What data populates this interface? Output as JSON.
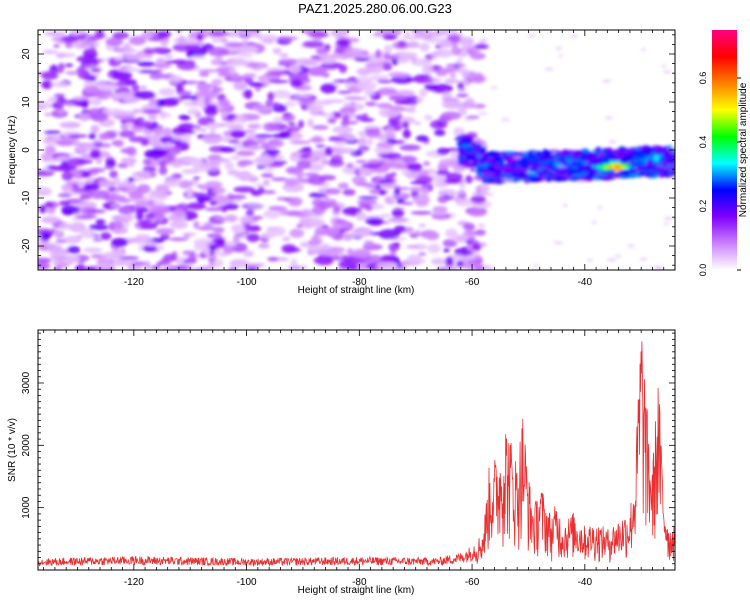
{
  "figure": {
    "title": "PAZ1.2025.280.06.00.G23"
  },
  "chart_data": [
    {
      "type": "heatmap",
      "xlabel": "Height of straight line (km)",
      "ylabel": "Frequency (Hz)",
      "xlim": [
        -137,
        -24
      ],
      "ylim": [
        -25,
        25
      ],
      "xticks": [
        -120,
        -100,
        -80,
        -60,
        -40
      ],
      "yticks": [
        -20,
        -10,
        0,
        10,
        20
      ],
      "colorbar": {
        "label": "Normalized spectral amplitude",
        "range": [
          0,
          0.75
        ],
        "ticks": [
          0.0,
          0.2,
          0.4,
          0.6
        ],
        "tick_labels": [
          "0.0",
          "0.2",
          "0.4",
          "0.6"
        ],
        "colors": [
          "#ffffff",
          "#cc80ff",
          "#8000ff",
          "#0000ff",
          "#00ffff",
          "#00ff00",
          "#ffff00",
          "#ff8000",
          "#ff0000",
          "#ff0080"
        ]
      },
      "description_points": [
        {
          "x": -45,
          "y": -3,
          "amp": 0.35
        },
        {
          "x": -35,
          "y": -3.5,
          "amp": 0.7
        },
        {
          "x": -28,
          "y": -1.5,
          "amp": 0.4
        },
        {
          "x": -50,
          "y": -2.5,
          "amp": 0.3
        }
      ]
    },
    {
      "type": "line",
      "xlabel": "Height of straight line (km)",
      "ylabel": "SNR (10 * v/v)",
      "xlim": [
        -137,
        -24
      ],
      "ylim": [
        0,
        3850
      ],
      "xticks": [
        -120,
        -100,
        -80,
        -60,
        -40
      ],
      "yticks": [
        1000,
        2000,
        3000
      ],
      "line_color": "#e83030",
      "series": [
        {
          "name": "SNR",
          "x": [
            -137,
            -120,
            -100,
            -80,
            -66,
            -62,
            -60,
            -58,
            -57,
            -55,
            -54,
            -53,
            -52,
            -51,
            -50,
            -49,
            -48,
            -46,
            -45,
            -44,
            -42,
            -40,
            -38,
            -36,
            -34,
            -32,
            -31,
            -30,
            -29,
            -28,
            -27,
            -26,
            -25,
            -24
          ],
          "values": [
            150,
            180,
            150,
            170,
            160,
            230,
            320,
            600,
            1500,
            1800,
            2200,
            1900,
            1600,
            2350,
            1400,
            900,
            1300,
            800,
            1000,
            700,
            850,
            650,
            700,
            600,
            750,
            900,
            1600,
            3850,
            2400,
            1500,
            2900,
            1200,
            600,
            750
          ]
        }
      ]
    }
  ]
}
